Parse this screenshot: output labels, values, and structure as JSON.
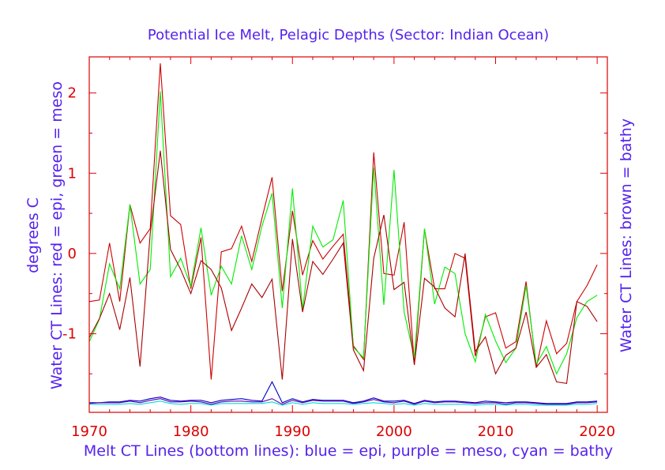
{
  "chart_data": {
    "type": "line",
    "title": "Potential Ice Melt, Pelagic Depths (Sector: Indian Ocean)",
    "ylabel_left_line1": "degrees C",
    "ylabel_left_line2": "Water CT Lines: red = epi, green = meso",
    "ylabel_right": "Water CT Lines: brown = bathy",
    "xlabel": "Melt CT Lines (bottom lines): blue = epi, purple = meso, cyan = bathy",
    "x_ticks": [
      1970,
      1980,
      1990,
      2000,
      2010,
      2020
    ],
    "y_ticks": [
      -1,
      0,
      1,
      2
    ],
    "xlim": [
      1970,
      2021
    ],
    "ylim": [
      -1.98,
      2.45
    ],
    "colors": {
      "axes": "#dd0000",
      "label": "#5522ee",
      "red": "#cc0000",
      "green": "#00ee00",
      "brown": "#aa0000",
      "blue": "#0000cc",
      "purple": "#6600aa",
      "cyan": "#00dddd"
    },
    "x": [
      1970,
      1971,
      1972,
      1973,
      1974,
      1975,
      1976,
      1977,
      1978,
      1979,
      1980,
      1981,
      1982,
      1983,
      1984,
      1985,
      1986,
      1987,
      1988,
      1989,
      1990,
      1991,
      1992,
      1993,
      1994,
      1995,
      1996,
      1997,
      1998,
      1999,
      2000,
      2001,
      2002,
      2003,
      2004,
      2005,
      2006,
      2007,
      2008,
      2009,
      2010,
      2011,
      2012,
      2013,
      2014,
      2015,
      2016,
      2017,
      2018,
      2019,
      2020
    ],
    "series": [
      {
        "name": "red",
        "color": "#cc0000",
        "values": [
          -0.6,
          -0.58,
          0.13,
          -0.6,
          0.61,
          0.13,
          0.31,
          2.37,
          0.47,
          0.36,
          -0.44,
          0.2,
          -1.57,
          0.02,
          0.06,
          0.34,
          -0.1,
          0.44,
          0.95,
          -0.47,
          0.53,
          -0.27,
          0.16,
          -0.07,
          0.09,
          0.24,
          -1.15,
          -1.32,
          1.26,
          -0.25,
          -0.27,
          0.39,
          -1.38,
          0.3,
          -0.44,
          -0.44,
          0.0,
          -0.06,
          -1.28,
          -0.79,
          -0.74,
          -1.18,
          -1.1,
          -0.35,
          -1.42,
          -0.84,
          -1.25,
          -1.12,
          -0.6,
          -0.4,
          -0.14
        ]
      },
      {
        "name": "green",
        "color": "#00ee00",
        "values": [
          -1.1,
          -0.82,
          -0.13,
          -0.44,
          0.61,
          -0.38,
          -0.2,
          2.02,
          -0.29,
          -0.06,
          -0.41,
          0.32,
          -0.52,
          -0.16,
          -0.38,
          0.22,
          -0.2,
          0.34,
          0.75,
          -0.68,
          0.81,
          -0.7,
          0.34,
          0.08,
          0.17,
          0.66,
          -1.17,
          -1.3,
          1.07,
          -0.64,
          1.04,
          -0.73,
          -1.3,
          0.31,
          -0.63,
          -0.17,
          -0.25,
          -1.0,
          -1.35,
          -0.76,
          -1.09,
          -1.36,
          -1.18,
          -0.4,
          -1.38,
          -1.16,
          -1.5,
          -1.25,
          -0.8,
          -0.6,
          -0.52
        ]
      },
      {
        "name": "brown",
        "color": "#aa0000",
        "values": [
          -1.05,
          -0.81,
          -0.5,
          -0.95,
          -0.3,
          -1.41,
          0.25,
          1.28,
          0.05,
          -0.2,
          -0.5,
          -0.09,
          -0.2,
          -0.43,
          -0.96,
          -0.68,
          -0.38,
          -0.55,
          -0.32,
          -1.57,
          0.18,
          -0.73,
          -0.1,
          -0.26,
          -0.07,
          0.13,
          -1.2,
          -1.46,
          -0.06,
          0.48,
          -0.45,
          -0.36,
          -1.39,
          -0.31,
          -0.42,
          -0.68,
          -0.79,
          0.0,
          -1.22,
          -1.04,
          -1.5,
          -1.27,
          -1.18,
          -0.73,
          -1.42,
          -1.26,
          -1.6,
          -1.62,
          -0.6,
          -0.66,
          -0.85
        ]
      },
      {
        "name": "blue",
        "color": "#0000cc",
        "values": [
          -1.86,
          -1.86,
          -1.85,
          -1.85,
          -1.83,
          -1.84,
          -1.81,
          -1.79,
          -1.83,
          -1.84,
          -1.83,
          -1.83,
          -1.86,
          -1.83,
          -1.82,
          -1.81,
          -1.83,
          -1.84,
          -1.6,
          -1.86,
          -1.81,
          -1.85,
          -1.82,
          -1.83,
          -1.83,
          -1.83,
          -1.86,
          -1.84,
          -1.8,
          -1.84,
          -1.84,
          -1.83,
          -1.87,
          -1.83,
          -1.85,
          -1.84,
          -1.84,
          -1.85,
          -1.86,
          -1.84,
          -1.85,
          -1.86,
          -1.85,
          -1.85,
          -1.86,
          -1.87,
          -1.87,
          -1.87,
          -1.85,
          -1.85,
          -1.84
        ]
      },
      {
        "name": "purple",
        "color": "#6600aa",
        "values": [
          -1.87,
          -1.86,
          -1.86,
          -1.86,
          -1.84,
          -1.86,
          -1.83,
          -1.81,
          -1.85,
          -1.85,
          -1.84,
          -1.85,
          -1.88,
          -1.85,
          -1.84,
          -1.84,
          -1.85,
          -1.85,
          -1.81,
          -1.88,
          -1.83,
          -1.86,
          -1.83,
          -1.84,
          -1.84,
          -1.84,
          -1.87,
          -1.85,
          -1.82,
          -1.85,
          -1.86,
          -1.84,
          -1.88,
          -1.84,
          -1.86,
          -1.85,
          -1.85,
          -1.86,
          -1.87,
          -1.86,
          -1.86,
          -1.88,
          -1.86,
          -1.86,
          -1.87,
          -1.88,
          -1.88,
          -1.88,
          -1.86,
          -1.86,
          -1.85
        ]
      },
      {
        "name": "cyan",
        "color": "#00dddd",
        "values": [
          -1.88,
          -1.88,
          -1.88,
          -1.88,
          -1.87,
          -1.88,
          -1.86,
          -1.84,
          -1.87,
          -1.88,
          -1.87,
          -1.87,
          -1.89,
          -1.87,
          -1.87,
          -1.87,
          -1.87,
          -1.87,
          -1.85,
          -1.89,
          -1.86,
          -1.88,
          -1.86,
          -1.87,
          -1.87,
          -1.87,
          -1.88,
          -1.87,
          -1.86,
          -1.87,
          -1.88,
          -1.87,
          -1.89,
          -1.87,
          -1.88,
          -1.88,
          -1.88,
          -1.88,
          -1.89,
          -1.88,
          -1.88,
          -1.89,
          -1.88,
          -1.88,
          -1.89,
          -1.89,
          -1.89,
          -1.89,
          -1.88,
          -1.88,
          -1.87
        ]
      }
    ]
  }
}
